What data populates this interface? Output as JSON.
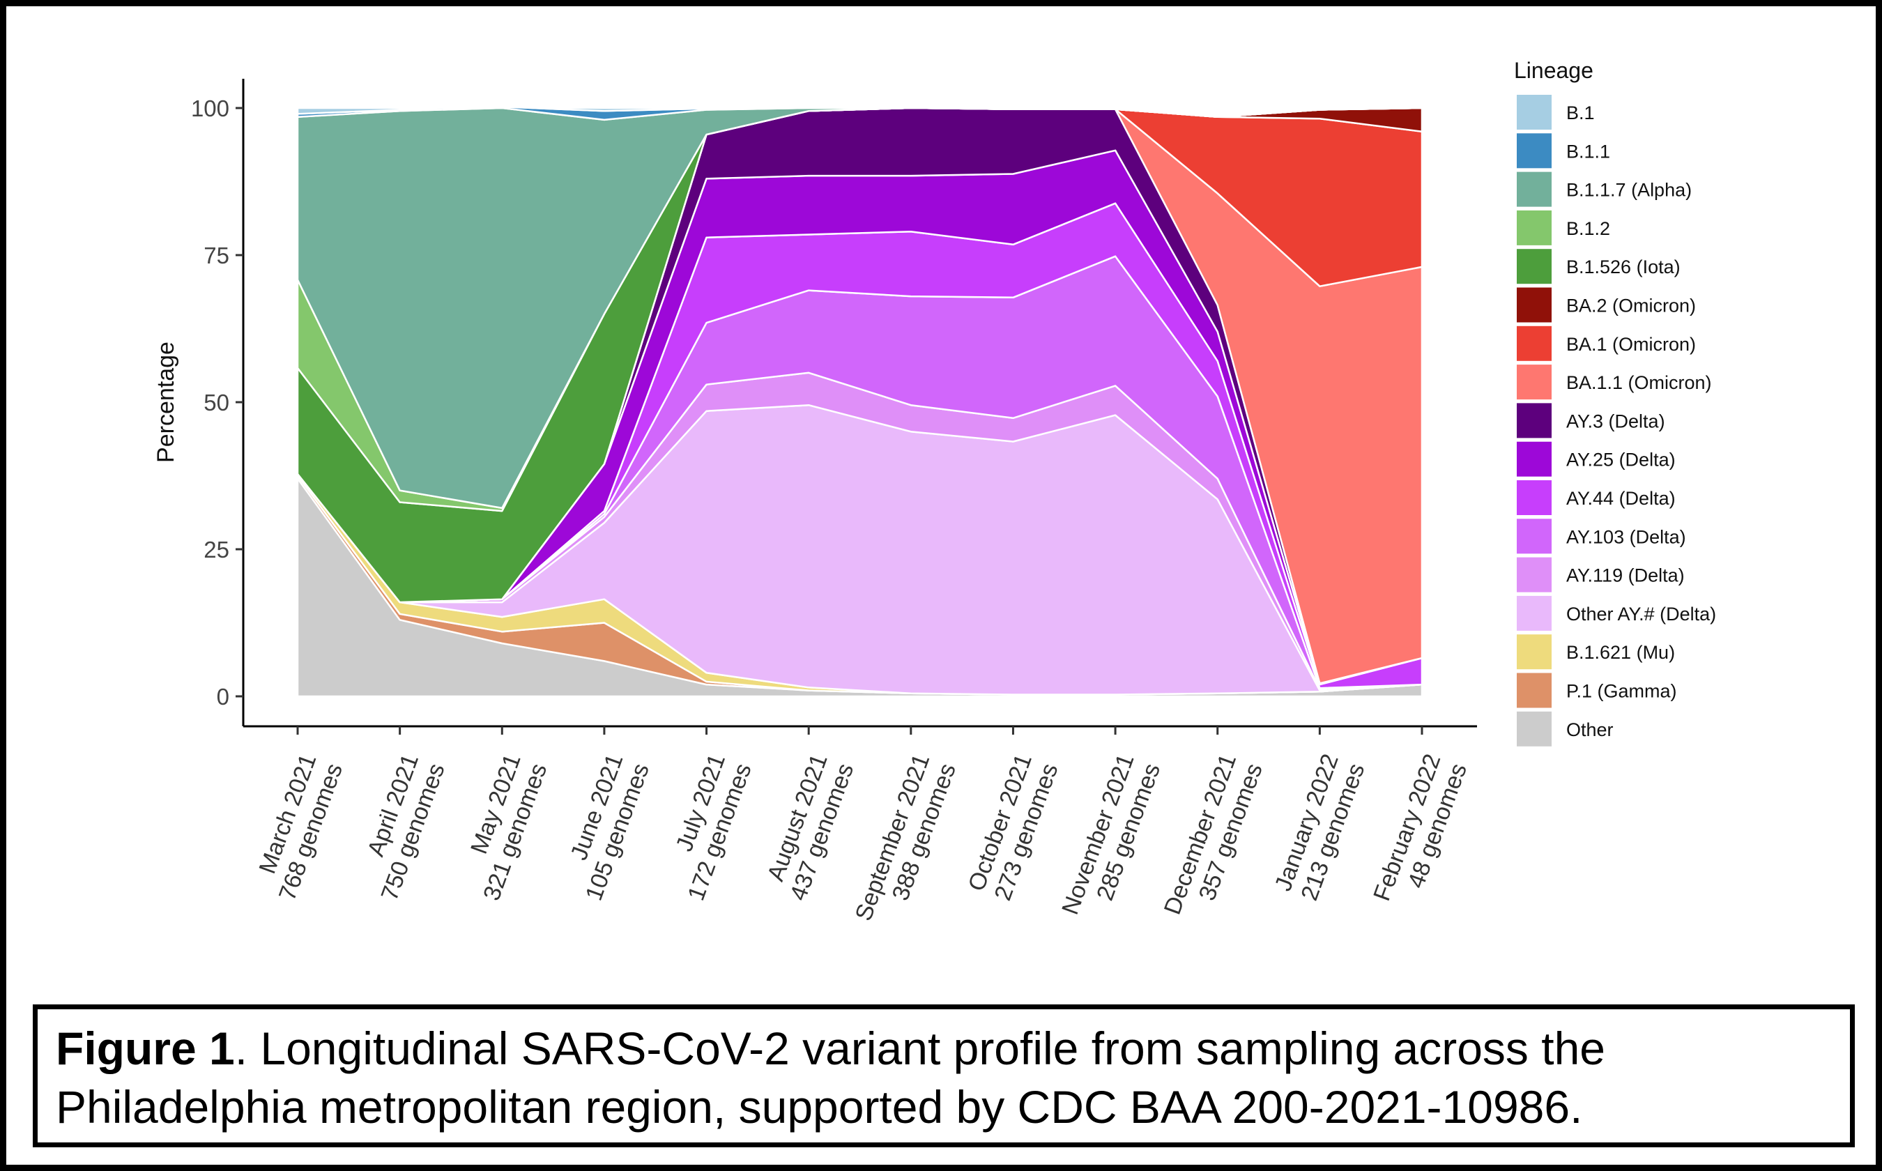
{
  "caption": {
    "label": "Figure 1",
    "text": ". Longitudinal SARS-CoV-2 variant profile from sampling across the Philadelphia metropolitan region, supported by CDC BAA 200-2021-10986."
  },
  "chart_data": {
    "type": "area",
    "stacked": true,
    "ylabel": "Percentage",
    "xlabel": "",
    "ylim": [
      0,
      100
    ],
    "yticks": [
      0,
      25,
      50,
      75,
      100
    ],
    "grid": false,
    "legend": {
      "title": "Lineage",
      "placement": "right"
    },
    "categories": [
      [
        "March 2021",
        "768 genomes"
      ],
      [
        "April 2021",
        "750 genomes"
      ],
      [
        "May 2021",
        "321 genomes"
      ],
      [
        "June 2021",
        "105 genomes"
      ],
      [
        "July 2021",
        "172 genomes"
      ],
      [
        "August 2021",
        "437 genomes"
      ],
      [
        "September 2021",
        "388 genomes"
      ],
      [
        "October 2021",
        "273 genomes"
      ],
      [
        "November 2021",
        "285 genomes"
      ],
      [
        "December 2021",
        "357 genomes"
      ],
      [
        "January 2022",
        "213 genomes"
      ],
      [
        "February 2022",
        "48 genomes"
      ]
    ],
    "series": [
      {
        "name": "Other",
        "color": "#cccccc",
        "values": [
          37,
          13,
          9,
          6,
          2,
          1,
          0.5,
          0.3,
          0.3,
          0.5,
          0.8,
          2
        ]
      },
      {
        "name": "P.1 (Gamma)",
        "color": "#de9168",
        "values": [
          0.5,
          1,
          2,
          6.5,
          0.5,
          0,
          0,
          0,
          0,
          0,
          0,
          0
        ]
      },
      {
        "name": "B.1.621 (Mu)",
        "color": "#eedb7d",
        "values": [
          0.3,
          2,
          2.5,
          4,
          1.5,
          0.5,
          0,
          0,
          0,
          0,
          0,
          0
        ]
      },
      {
        "name": "Other AY.# (Delta)",
        "color": "#e9b9fb",
        "values": [
          0,
          0,
          2.5,
          13,
          44.5,
          48,
          44.5,
          43,
          47.5,
          33,
          0.2,
          0
        ]
      },
      {
        "name": "AY.119 (Delta)",
        "color": "#df8ff8",
        "values": [
          0,
          0,
          0.5,
          1,
          4.5,
          5.5,
          4.5,
          4,
          5,
          3.5,
          0.2,
          0
        ]
      },
      {
        "name": "AY.103 (Delta)",
        "color": "#d166fb",
        "values": [
          0,
          0,
          0,
          0.5,
          10.5,
          14,
          18.5,
          20.5,
          22,
          14,
          0.2,
          0
        ]
      },
      {
        "name": "AY.44 (Delta)",
        "color": "#c73efc",
        "values": [
          0,
          0,
          0,
          0.5,
          14.5,
          9.5,
          11,
          9,
          9,
          6,
          0.6,
          4.5
        ]
      },
      {
        "name": "AY.25 (Delta)",
        "color": "#9d08d8",
        "values": [
          0,
          0,
          0,
          8,
          10,
          10,
          9.5,
          12,
          9,
          5,
          0.2,
          0
        ]
      },
      {
        "name": "AY.3 (Delta)",
        "color": "#5d007d",
        "values": [
          0,
          0,
          0,
          0,
          7.5,
          11,
          11.5,
          11,
          7,
          4.5,
          0,
          0
        ]
      },
      {
        "name": "BA.1.1 (Omicron)",
        "color": "#fe7770",
        "values": [
          0,
          0,
          0,
          0,
          0,
          0,
          0,
          0,
          0,
          19,
          67.5,
          66.5
        ]
      },
      {
        "name": "BA.1 (Omicron)",
        "color": "#ec3f33",
        "values": [
          0,
          0,
          0,
          0,
          0,
          0,
          0,
          0,
          0,
          13,
          28.5,
          23
        ]
      },
      {
        "name": "BA.2 (Omicron)",
        "color": "#901109",
        "values": [
          0,
          0,
          0,
          0,
          0,
          0,
          0,
          0,
          0,
          0,
          1.5,
          4
        ]
      },
      {
        "name": "B.1.526 (Iota)",
        "color": "#4d9e3c",
        "values": [
          18,
          17,
          15,
          25.5,
          0,
          0,
          0,
          0,
          0,
          0,
          0,
          0
        ]
      },
      {
        "name": "B.1.2",
        "color": "#84c76c",
        "values": [
          15,
          2,
          0.5,
          0,
          0,
          0,
          0,
          0,
          0,
          0,
          0,
          0
        ]
      },
      {
        "name": "B.1.1.7 (Alpha)",
        "color": "#72b09b",
        "values": [
          27.7,
          64.5,
          68,
          33,
          4.2,
          0.5,
          0,
          0,
          0,
          0,
          0,
          0
        ]
      },
      {
        "name": "B.1.1",
        "color": "#3c8bc2",
        "values": [
          0.5,
          0.2,
          0.2,
          1.5,
          0.2,
          0,
          0,
          0,
          0,
          0,
          0,
          0
        ]
      },
      {
        "name": "B.1",
        "color": "#a6cee3",
        "values": [
          1,
          0.3,
          0,
          0.5,
          0.1,
          0,
          0,
          0,
          0,
          0,
          0,
          0
        ]
      }
    ],
    "legend_order": [
      "B.1",
      "B.1.1",
      "B.1.1.7 (Alpha)",
      "B.1.2",
      "B.1.526 (Iota)",
      "BA.2 (Omicron)",
      "BA.1 (Omicron)",
      "BA.1.1 (Omicron)",
      "AY.3 (Delta)",
      "AY.25 (Delta)",
      "AY.44 (Delta)",
      "AY.103 (Delta)",
      "AY.119 (Delta)",
      "Other AY.# (Delta)",
      "B.1.621 (Mu)",
      "P.1 (Gamma)",
      "Other"
    ]
  }
}
